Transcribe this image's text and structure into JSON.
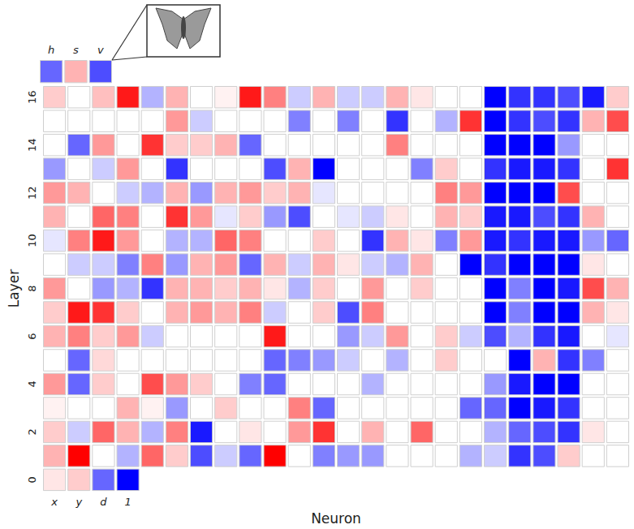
{
  "chart_data": {
    "type": "heatmap",
    "x_label": "Neuron",
    "y_label": "Layer",
    "categories": [
      "x",
      "y",
      "d",
      "1",
      null,
      null,
      null,
      null,
      null,
      null,
      null,
      null,
      null,
      null,
      null,
      null,
      null,
      null,
      null,
      null,
      null,
      null,
      null,
      null
    ],
    "y_categories": [
      0,
      null,
      2,
      null,
      4,
      null,
      6,
      null,
      8,
      null,
      10,
      null,
      12,
      null,
      14,
      null,
      16
    ],
    "color_range": [
      -1,
      1
    ],
    "cells": [
      [
        0.1,
        0.2,
        -0.6,
        -1,
        null,
        null,
        null,
        null,
        null,
        null,
        null,
        null,
        null,
        null,
        null,
        null,
        null,
        null,
        null,
        null,
        null,
        null,
        null,
        null
      ],
      [
        0.3,
        1,
        0,
        -0.3,
        0.6,
        0.2,
        -0.7,
        -0.2,
        -0.6,
        1,
        0,
        -0.5,
        -0.4,
        -0.4,
        0,
        0,
        0,
        -0.3,
        -0.2,
        -0.8,
        -0.7,
        0.2,
        0,
        0
      ],
      [
        0.2,
        -0.2,
        0.6,
        0.3,
        -0.3,
        0.5,
        -0.9,
        0,
        0.1,
        0,
        0.4,
        0.8,
        0,
        0.3,
        0,
        0.6,
        0,
        0,
        -0.3,
        -0.6,
        -0.7,
        -0.8,
        0.1,
        0
      ],
      [
        0.05,
        0,
        0,
        0.3,
        0.05,
        -0.4,
        0,
        0.2,
        0,
        0,
        0.5,
        -0.6,
        0,
        0,
        0,
        0,
        0,
        -0.6,
        -0.6,
        -1,
        -0.9,
        -0.8,
        0,
        0
      ],
      [
        0.4,
        -0.6,
        0.2,
        0,
        0.7,
        0.4,
        0.2,
        0,
        -0.5,
        -0.6,
        0,
        0,
        0,
        -0.3,
        0,
        0,
        0,
        0,
        -0.4,
        -0.9,
        -1,
        -1,
        0,
        0
      ],
      [
        0,
        -0.6,
        0.15,
        0,
        0,
        0,
        0,
        0,
        0,
        -0.6,
        -0.5,
        -0.4,
        -0.2,
        0,
        -0.3,
        0,
        0.2,
        0,
        0,
        -1,
        0.3,
        -0.8,
        -0.5,
        0
      ],
      [
        0.3,
        0.5,
        0.2,
        0.4,
        -0.2,
        0,
        0,
        0,
        0,
        0.9,
        0,
        0,
        -0.4,
        -0.2,
        0.4,
        0,
        0.2,
        -0.2,
        -0.7,
        -0.3,
        -0.8,
        -0.9,
        0,
        -0.1
      ],
      [
        0.2,
        0.9,
        0.8,
        0.2,
        0,
        0.3,
        0.4,
        0.3,
        0.5,
        -0.2,
        0,
        0.2,
        -0.7,
        0.5,
        0,
        0,
        0,
        0,
        -1,
        -0.5,
        -1,
        -1,
        0.3,
        0.1
      ],
      [
        0.4,
        0,
        -0.4,
        -0.3,
        -0.8,
        0.3,
        0.3,
        0.2,
        0.3,
        0.1,
        -0.3,
        0.2,
        0,
        0.4,
        0,
        0.2,
        0,
        0,
        -1,
        -0.5,
        -1,
        -0.9,
        0.7,
        0.3
      ],
      [
        0,
        -0.2,
        -0.2,
        -0.5,
        0.5,
        -0.4,
        0.3,
        0.4,
        -0.6,
        0.3,
        -0.2,
        0.3,
        0.1,
        -0.2,
        -0.3,
        0.3,
        0,
        -1,
        -0.8,
        -1,
        -1,
        -1,
        0.1,
        0
      ],
      [
        -0.1,
        0.5,
        0.9,
        0.4,
        0,
        -0.3,
        -0.3,
        0.6,
        0.5,
        0,
        0,
        0.2,
        0,
        -0.8,
        0.3,
        0.1,
        -0.5,
        0.4,
        -0.9,
        -0.8,
        -0.9,
        -0.9,
        -0.4,
        -0.6
      ],
      [
        0.3,
        0,
        0.6,
        0.5,
        0,
        0.8,
        0.4,
        -0.1,
        0.2,
        -0.4,
        -0.7,
        0,
        -0.1,
        -0.2,
        0.1,
        0,
        0.3,
        0.2,
        -0.9,
        -0.9,
        -0.7,
        -0.8,
        0.3,
        0
      ],
      [
        0.4,
        0.3,
        0,
        -0.2,
        -0.3,
        0.3,
        -0.4,
        0.3,
        0.4,
        0.2,
        0.3,
        -0.1,
        0,
        0,
        0,
        0,
        0.5,
        0.4,
        -1,
        -1,
        -1,
        0.7,
        0,
        0
      ],
      [
        -0.4,
        0,
        -0.2,
        0.4,
        0,
        -0.8,
        0,
        0,
        0,
        -0.7,
        0.3,
        -1,
        0,
        0,
        0,
        -0.5,
        0.2,
        0,
        -0.8,
        -0.9,
        -0.9,
        -0.8,
        0,
        0.8
      ],
      [
        0,
        -0.6,
        0.4,
        0,
        0.8,
        0.2,
        0.2,
        0.3,
        -0.6,
        0,
        0,
        0,
        0,
        0,
        0.5,
        0,
        0,
        0,
        -1,
        -1,
        -1,
        -0.4,
        0,
        0
      ],
      [
        0,
        0,
        0,
        0,
        0,
        0.4,
        -0.2,
        0,
        0,
        0,
        -0.5,
        0,
        -0.5,
        0,
        -0.8,
        0,
        -0.3,
        0.8,
        -1,
        -0.8,
        -0.7,
        -0.8,
        0.3,
        0.7
      ],
      [
        0.2,
        0,
        0.25,
        0.9,
        -0.3,
        0.3,
        0,
        0.05,
        0.9,
        0.5,
        -0.2,
        0.3,
        -0.2,
        -0.2,
        0.3,
        0.1,
        0,
        0,
        -1,
        -0.8,
        -0.8,
        -0.7,
        -0.9,
        0.2
      ]
    ],
    "outputs": {
      "categories": [
        "h",
        "s",
        "v"
      ],
      "values": [
        -0.6,
        0.3,
        -0.7
      ]
    }
  }
}
